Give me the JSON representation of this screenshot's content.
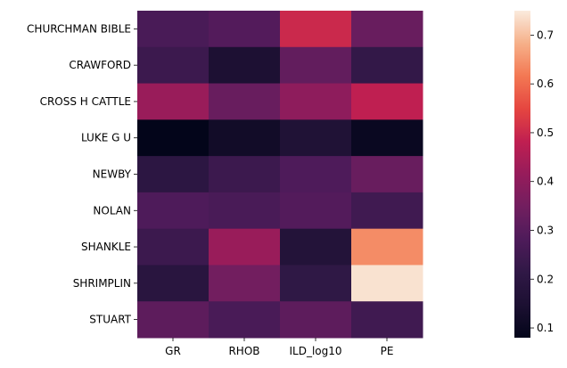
{
  "chart_data": {
    "type": "heatmap",
    "title": "",
    "xlabel": "",
    "ylabel": "",
    "x_categories": [
      "GR",
      "RHOB",
      "ILD_log10",
      "PE"
    ],
    "y_categories": [
      "CHURCHMAN BIBLE",
      "CRAWFORD",
      "CROSS H CATTLE",
      "LUKE G U",
      "NEWBY",
      "NOLAN",
      "SHANKLE",
      "SHRIMPLIN",
      "STUART"
    ],
    "values": [
      [
        0.27,
        0.29,
        0.5,
        0.33
      ],
      [
        0.24,
        0.15,
        0.32,
        0.22
      ],
      [
        0.42,
        0.33,
        0.4,
        0.48
      ],
      [
        0.08,
        0.12,
        0.16,
        0.1
      ],
      [
        0.2,
        0.24,
        0.28,
        0.33
      ],
      [
        0.28,
        0.27,
        0.29,
        0.25
      ],
      [
        0.24,
        0.42,
        0.17,
        0.64
      ],
      [
        0.19,
        0.35,
        0.21,
        0.74
      ],
      [
        0.31,
        0.27,
        0.31,
        0.25
      ]
    ],
    "colorbar": {
      "colormap": "rocket",
      "vmin": 0.08,
      "vmax": 0.75,
      "ticks": [
        "0.1",
        "0.2",
        "0.3",
        "0.4",
        "0.5",
        "0.6",
        "0.7"
      ]
    }
  }
}
